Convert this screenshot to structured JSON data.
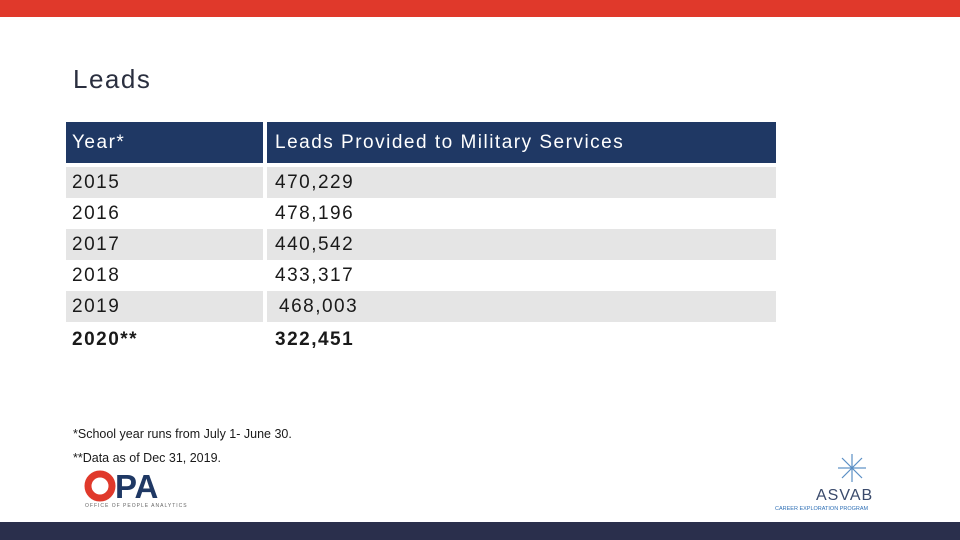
{
  "title": "Leads",
  "table": {
    "headers": [
      "Year*",
      "Leads Provided to Military Services"
    ],
    "rows": [
      {
        "year": "2015",
        "leads": "470,229"
      },
      {
        "year": "2016",
        "leads": "478,196"
      },
      {
        "year": "2017",
        "leads": "440,542"
      },
      {
        "year": "2018",
        "leads": "433,317"
      },
      {
        "year": "2019",
        "leads": "468,003"
      },
      {
        "year": "2020**",
        "leads": "322,451"
      }
    ]
  },
  "notes": {
    "school_year": "*School year runs from July 1- June 30.",
    "data_as_of": "**Data as of Dec 31, 2019."
  },
  "logos": {
    "opa": {
      "text": "PA",
      "subtitle": "OFFICE OF PEOPLE ANALYTICS"
    },
    "asvab": {
      "text": "ASVAB",
      "subtitle": "CAREER EXPLORATION PROGRAM"
    }
  },
  "colors": {
    "top_bar": "#e0392b",
    "bottom_bar": "#2a2f4c",
    "header_fill": "#1f3864",
    "row_shade": "#e5e5e5"
  }
}
